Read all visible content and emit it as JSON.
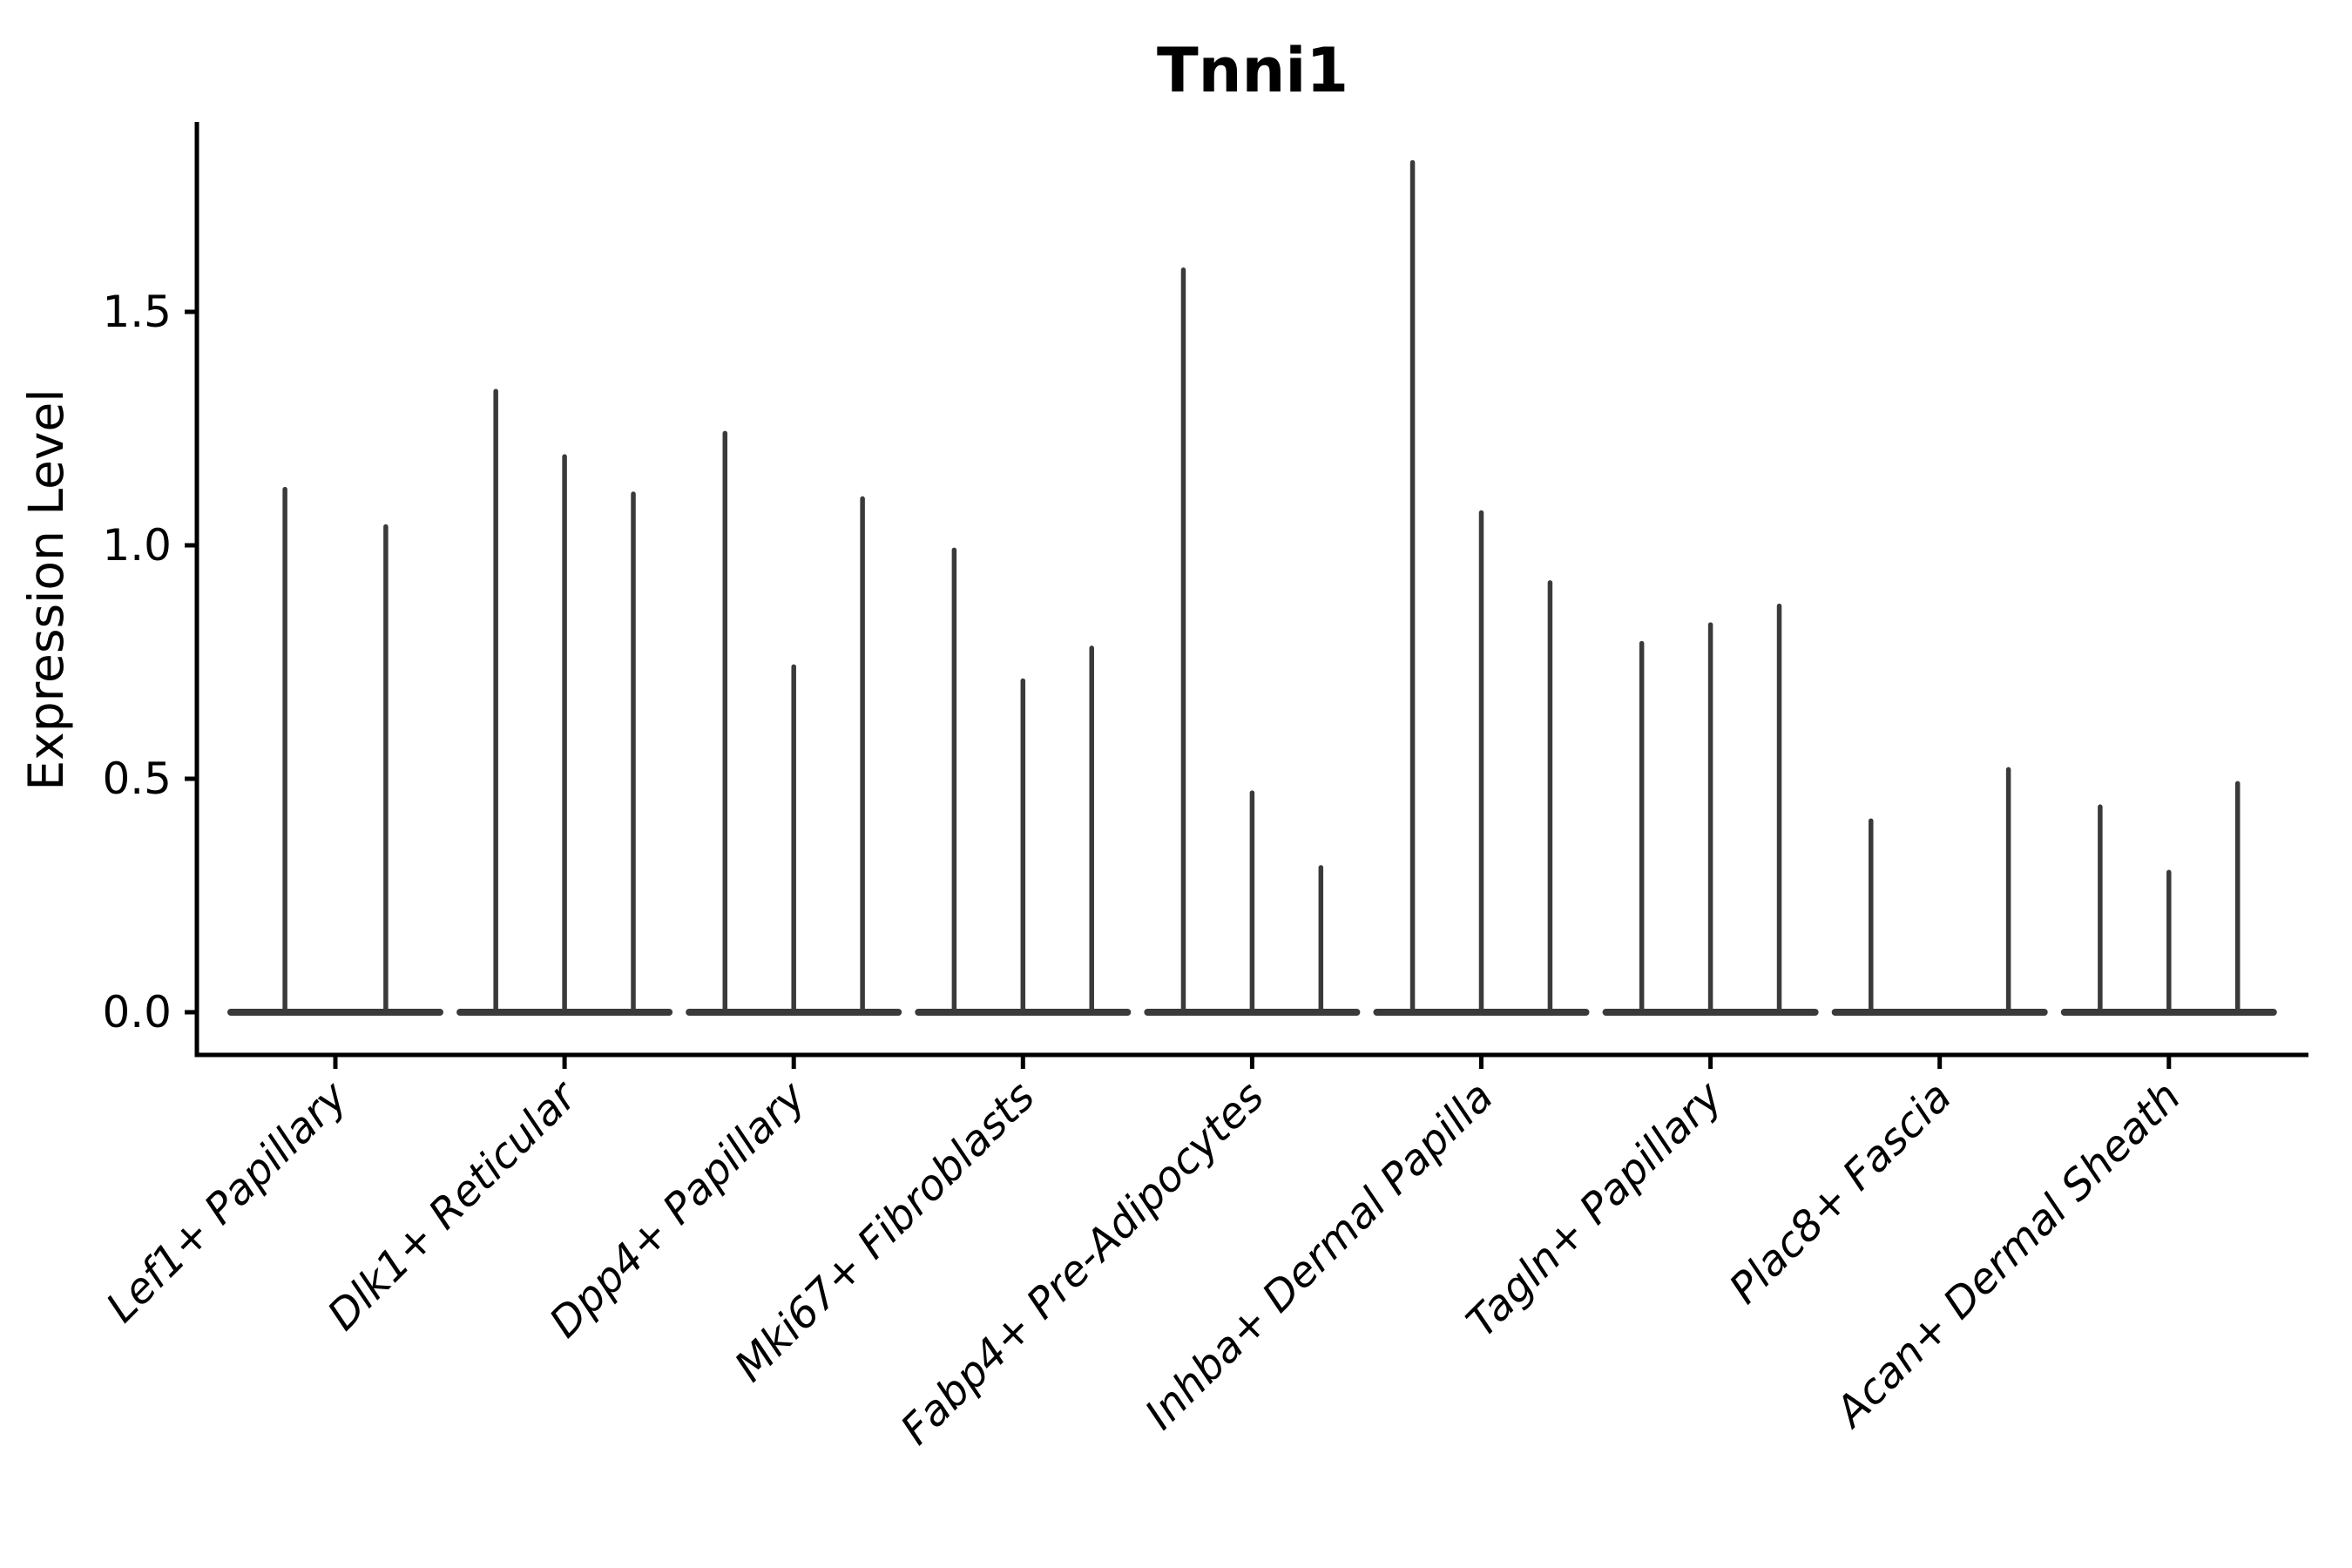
{
  "page": {
    "background": "#ffffff"
  },
  "chart_data": {
    "type": "violin",
    "title": "Tnni1",
    "ylabel": "Expression Level",
    "xlabel": "",
    "ylim": [
      0,
      1.91
    ],
    "yticks": [
      "0.0",
      "0.5",
      "1.0",
      "1.5"
    ],
    "ytick_values": [
      0.0,
      0.5,
      1.0,
      1.5
    ],
    "grid": false,
    "legend": "none",
    "description_of_marks": "Each category shows flattened violins: a horizontal base line at expression 0 with thin vertical spikes reaching the maximum expression of each sub-violin.",
    "groups": [
      {
        "category": "Lef1+ Papillary",
        "violins": [
          {
            "offset": -0.22,
            "max": 1.12
          },
          {
            "offset": 0.22,
            "max": 1.04
          }
        ]
      },
      {
        "category": "Dlk1+ Reticular",
        "violins": [
          {
            "offset": -0.3,
            "max": 1.33
          },
          {
            "offset": 0.0,
            "max": 1.19
          },
          {
            "offset": 0.3,
            "max": 1.11
          }
        ]
      },
      {
        "category": "Dpp4+ Papillary",
        "violins": [
          {
            "offset": -0.3,
            "max": 1.24
          },
          {
            "offset": 0.0,
            "max": 0.74
          },
          {
            "offset": 0.3,
            "max": 1.1
          }
        ]
      },
      {
        "category": "Mki67+ Fibroblasts",
        "violins": [
          {
            "offset": -0.3,
            "max": 0.99
          },
          {
            "offset": 0.0,
            "max": 0.71
          },
          {
            "offset": 0.3,
            "max": 0.78
          }
        ]
      },
      {
        "category": "Fabp4+ Pre-Adipocytes",
        "violins": [
          {
            "offset": -0.3,
            "max": 1.59
          },
          {
            "offset": 0.0,
            "max": 0.47
          },
          {
            "offset": 0.3,
            "max": 0.31
          }
        ]
      },
      {
        "category": "Inhba+ Dermal Papilla",
        "violins": [
          {
            "offset": -0.3,
            "max": 1.82
          },
          {
            "offset": 0.0,
            "max": 1.07
          },
          {
            "offset": 0.3,
            "max": 0.92
          }
        ]
      },
      {
        "category": "Tagln+ Papillary",
        "violins": [
          {
            "offset": -0.3,
            "max": 0.79
          },
          {
            "offset": 0.0,
            "max": 0.83
          },
          {
            "offset": 0.3,
            "max": 0.87
          }
        ]
      },
      {
        "category": "Plac8+ Fascia",
        "violins": [
          {
            "offset": -0.3,
            "max": 0.41
          },
          {
            "offset": 0.3,
            "max": 0.52
          }
        ]
      },
      {
        "category": "Acan+ Dermal Sheath",
        "violins": [
          {
            "offset": -0.3,
            "max": 0.44
          },
          {
            "offset": 0.0,
            "max": 0.3
          },
          {
            "offset": 0.3,
            "max": 0.49
          }
        ]
      }
    ],
    "colors": {
      "violin_line": "#3a3a3a",
      "axis": "#000000",
      "text": "#000000",
      "background": "#ffffff"
    }
  }
}
